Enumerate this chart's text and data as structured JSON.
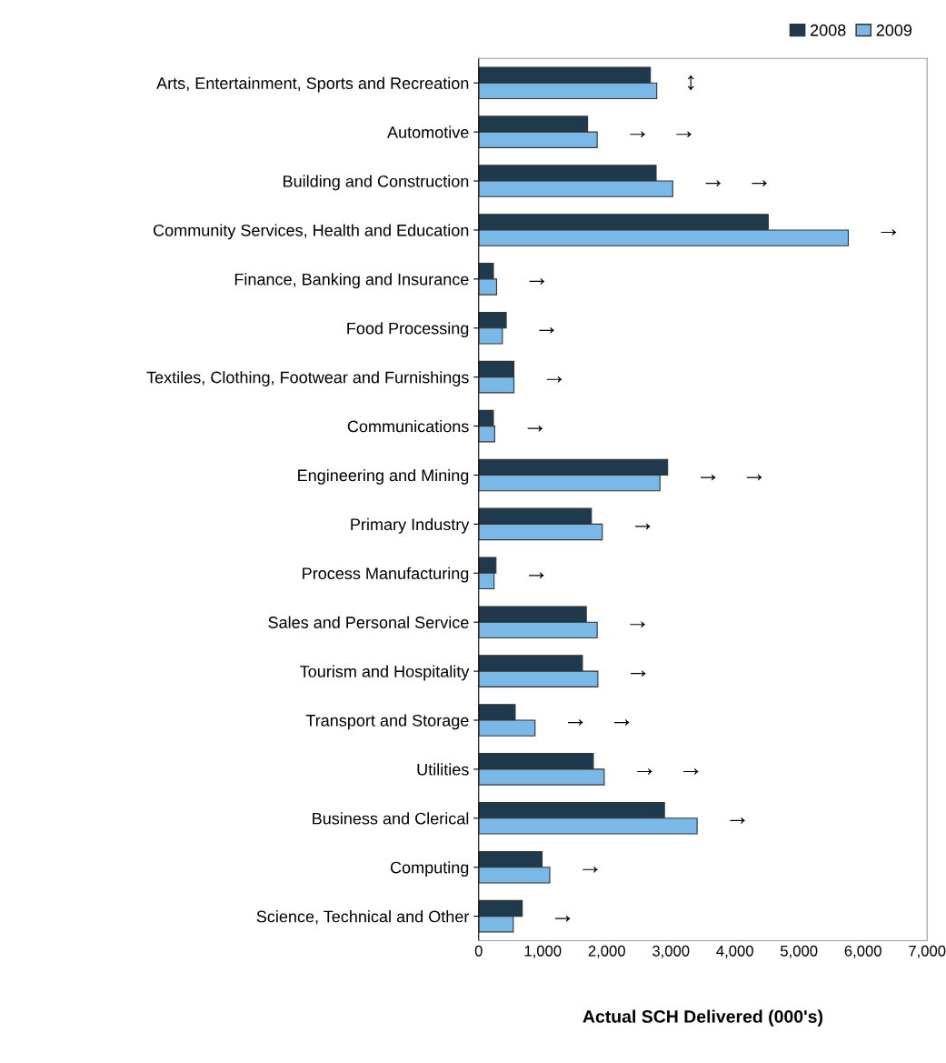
{
  "chart_data": {
    "type": "bar",
    "orientation": "horizontal",
    "xlabel": "Actual SCH Delivered (000's)",
    "categories": [
      "Arts, Entertainment, Sports and Recreation",
      "Automotive",
      "Building and Construction",
      "Community Services, Health and Education",
      "Finance, Banking and Insurance",
      "Food Processing",
      "Textiles, Clothing, Footwear and Furnishings",
      "Communications",
      "Engineering and Mining",
      "Primary Industry",
      "Process Manufacturing",
      "Sales and Personal Service",
      "Tourism and Hospitality",
      "Transport and Storage",
      "Utilities",
      "Business and Clerical",
      "Computing",
      "Science, Technical and Other"
    ],
    "series": [
      {
        "name": "2008",
        "color": "#1f3a4d",
        "values": [
          2680,
          1700,
          2770,
          4520,
          230,
          430,
          550,
          230,
          2950,
          1760,
          270,
          1680,
          1620,
          570,
          1790,
          2900,
          990,
          680
        ]
      },
      {
        "name": "2009",
        "color": "#7ab8e8",
        "values": [
          2780,
          1850,
          3030,
          5770,
          280,
          370,
          550,
          250,
          2830,
          1930,
          240,
          1850,
          1860,
          880,
          1960,
          3410,
          1110,
          540
        ]
      }
    ],
    "xlim": [
      0,
      7000
    ],
    "xticks": [
      {
        "value": 0,
        "label": "0"
      },
      {
        "value": 1000,
        "label": "1,000"
      },
      {
        "value": 2000,
        "label": "2,000"
      },
      {
        "value": 3000,
        "label": "3,000"
      },
      {
        "value": 4000,
        "label": "4,000"
      },
      {
        "value": 5000,
        "label": "5,000"
      },
      {
        "value": 6000,
        "label": "6,000"
      },
      {
        "value": 7000,
        "label": "7,000"
      }
    ],
    "grid": false,
    "legend": "top right",
    "annotations": [
      "↕",
      "→   →",
      "→   →",
      "→",
      "→",
      "→",
      "→",
      "→",
      "→   →",
      "→",
      "→",
      "→",
      "→",
      "→   →",
      "→   →",
      "→",
      "→",
      "→"
    ]
  }
}
